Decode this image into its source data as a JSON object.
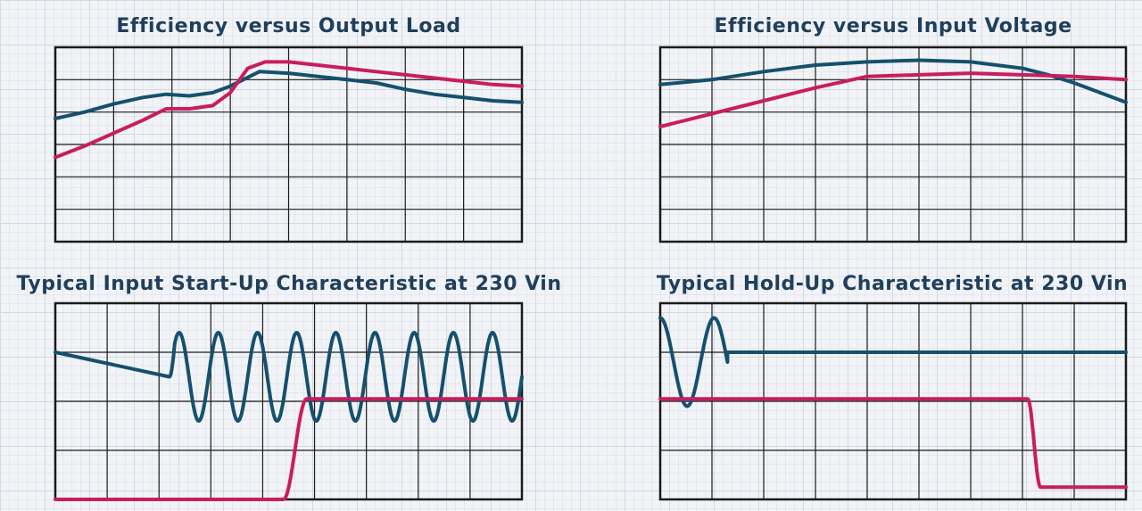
{
  "colors": {
    "blue_trace": "#15506e",
    "red_trace": "#c91d5f",
    "grid": "#1a1a1a",
    "title": "#1f3f5c"
  },
  "charts": [
    {
      "id": "c1",
      "title": "Efficiency versus Output Load",
      "chart_data": {
        "type": "line",
        "title": "Efficiency versus Output Load",
        "xlabel": "",
        "ylabel": "",
        "grid": "8x6",
        "xlim": [
          0,
          8
        ],
        "ylim": [
          0,
          6
        ],
        "series": [
          {
            "color": "#15506e",
            "kind": "linear",
            "x": [
              0,
              0.5,
              1.0,
              1.5,
              1.9,
              2.3,
              2.7,
              3.0,
              3.5,
              4.0,
              4.5,
              5.0,
              5.5,
              6.0,
              6.5,
              7.0,
              7.5,
              8.0
            ],
            "y": [
              3.8,
              4.0,
              4.25,
              4.45,
              4.55,
              4.5,
              4.6,
              4.8,
              5.25,
              5.2,
              5.1,
              5.0,
              4.9,
              4.7,
              4.55,
              4.45,
              4.35,
              4.3
            ]
          },
          {
            "color": "#c91d5f",
            "kind": "linear",
            "x": [
              0,
              0.5,
              1.0,
              1.5,
              1.9,
              2.3,
              2.7,
              3.0,
              3.3,
              3.6,
              4.0,
              4.5,
              5.0,
              5.5,
              6.0,
              6.5,
              7.0,
              7.5,
              8.0
            ],
            "y": [
              2.6,
              2.95,
              3.35,
              3.75,
              4.1,
              4.1,
              4.2,
              4.6,
              5.35,
              5.55,
              5.55,
              5.45,
              5.35,
              5.25,
              5.15,
              5.05,
              4.95,
              4.85,
              4.8
            ]
          }
        ]
      }
    },
    {
      "id": "c2",
      "title": "Efficiency versus Input Voltage",
      "chart_data": {
        "type": "line",
        "title": "Efficiency versus Input Voltage",
        "xlabel": "",
        "ylabel": "",
        "grid": "9x6",
        "xlim": [
          0,
          9
        ],
        "ylim": [
          0,
          6
        ],
        "series": [
          {
            "color": "#15506e",
            "kind": "linear",
            "x": [
              0,
              1,
              2,
              3,
              4,
              5,
              6,
              7,
              7.5,
              8.0,
              8.5,
              9.0
            ],
            "y": [
              4.85,
              5.0,
              5.25,
              5.45,
              5.55,
              5.6,
              5.55,
              5.35,
              5.15,
              4.9,
              4.6,
              4.3
            ]
          },
          {
            "color": "#c91d5f",
            "kind": "linear",
            "x": [
              0,
              1,
              2,
              3,
              4,
              5,
              6,
              7,
              8,
              9
            ],
            "y": [
              3.55,
              3.95,
              4.35,
              4.75,
              5.1,
              5.15,
              5.2,
              5.15,
              5.1,
              5.0
            ]
          }
        ]
      }
    },
    {
      "id": "c3",
      "title": "Typical Input Start-Up Characteristic at 230 Vin",
      "chart_data": {
        "type": "line",
        "title": "Typical Input Start-Up Characteristic at 230 Vin",
        "xlabel": "",
        "ylabel": "",
        "grid": "9x4",
        "xlim": [
          0,
          9
        ],
        "ylim": [
          0,
          4
        ],
        "series": [
          {
            "color": "#15506e",
            "kind": "sine",
            "baseline": 3.0,
            "start": 2.2,
            "end": 9.0,
            "center": 2.5,
            "amplitude": 0.9,
            "cycles": 9
          },
          {
            "color": "#c91d5f",
            "kind": "step",
            "low": 0.0,
            "high": 2.05,
            "rise_start": 4.4,
            "rise_end": 4.85
          }
        ]
      }
    },
    {
      "id": "c4",
      "title": "Typical Hold-Up Characteristic at 230 Vin",
      "chart_data": {
        "type": "line",
        "title": "Typical Hold-Up Characteristic at 230 Vin",
        "xlabel": "",
        "ylabel": "",
        "grid": "9x4",
        "xlim": [
          0,
          9
        ],
        "ylim": [
          0,
          4
        ],
        "series": [
          {
            "color": "#15506e",
            "kind": "decay",
            "baseline": 3.0,
            "center": 2.8,
            "amplitude": 0.9,
            "osc_start": 0.0,
            "osc_end": 1.3,
            "cycles": 1.25
          },
          {
            "color": "#c91d5f",
            "kind": "fall",
            "high": 2.05,
            "low": 0.25,
            "fall_start": 7.1,
            "fall_end": 7.35
          }
        ]
      }
    }
  ]
}
